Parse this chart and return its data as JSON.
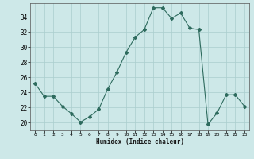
{
  "x": [
    0,
    1,
    2,
    3,
    4,
    5,
    6,
    7,
    8,
    9,
    10,
    11,
    12,
    13,
    14,
    15,
    16,
    17,
    18,
    19,
    20,
    21,
    22,
    23
  ],
  "y": [
    25.2,
    23.5,
    23.5,
    22.2,
    21.2,
    20.1,
    20.8,
    21.8,
    24.5,
    26.7,
    29.3,
    31.3,
    32.3,
    35.2,
    35.2,
    33.8,
    34.5,
    32.5,
    32.3,
    19.8,
    21.3,
    23.7,
    23.7,
    22.2
  ],
  "line_color": "#2e6b5e",
  "marker": "D",
  "marker_size": 2,
  "bg_color": "#cde8e8",
  "grid_color": "#aacece",
  "xlabel": "Humidex (Indice chaleur)",
  "xlim": [
    -0.5,
    23.5
  ],
  "ylim": [
    19.0,
    35.8
  ],
  "yticks": [
    20,
    22,
    24,
    26,
    28,
    30,
    32,
    34
  ],
  "xticks": [
    0,
    1,
    2,
    3,
    4,
    5,
    6,
    7,
    8,
    9,
    10,
    11,
    12,
    13,
    14,
    15,
    16,
    17,
    18,
    19,
    20,
    21,
    22,
    23
  ]
}
